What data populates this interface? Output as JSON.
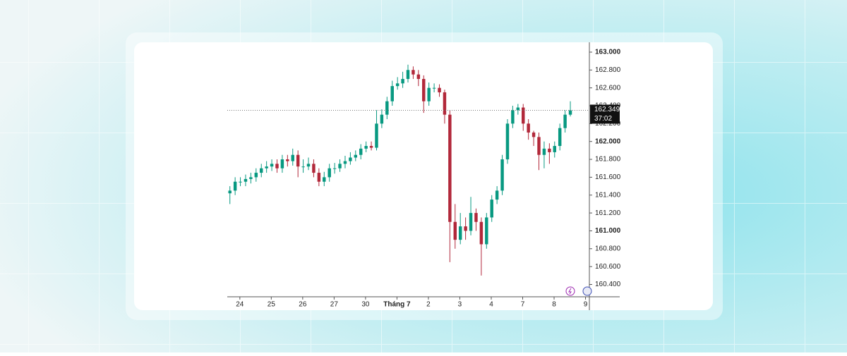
{
  "chart_data": {
    "type": "candlestick",
    "open": [
      161.42,
      161.45,
      161.55,
      161.55,
      161.58,
      161.6,
      161.65,
      161.7,
      161.72,
      161.75,
      161.7,
      161.8,
      161.78,
      161.85,
      161.72,
      161.72,
      161.75,
      161.65,
      161.55,
      161.6,
      161.7,
      161.7,
      161.75,
      161.78,
      161.82,
      161.85,
      161.92,
      161.95,
      161.93,
      162.2,
      162.3,
      162.45,
      162.62,
      162.65,
      162.7,
      162.8,
      162.75,
      162.7,
      162.45,
      162.6,
      162.6,
      162.55,
      162.3,
      161.1,
      160.9,
      161.05,
      161.0,
      161.2,
      161.1,
      160.85,
      161.15,
      161.35,
      161.45,
      161.8,
      162.2,
      162.35,
      162.38,
      162.2,
      162.1,
      162.05,
      161.85,
      161.92,
      161.88,
      161.95,
      162.15,
      162.3
    ],
    "high": [
      161.5,
      161.6,
      161.6,
      161.63,
      161.65,
      161.7,
      161.75,
      161.78,
      161.8,
      161.8,
      161.85,
      161.85,
      161.92,
      161.9,
      161.8,
      161.82,
      161.8,
      161.7,
      161.66,
      161.75,
      161.76,
      161.8,
      161.84,
      161.88,
      161.9,
      161.97,
      162.0,
      162.0,
      162.35,
      162.36,
      162.5,
      162.68,
      162.72,
      162.78,
      162.86,
      162.84,
      162.8,
      162.74,
      162.66,
      162.65,
      162.64,
      162.58,
      162.35,
      161.3,
      161.2,
      161.15,
      161.38,
      161.25,
      161.15,
      161.2,
      161.4,
      161.5,
      161.85,
      162.25,
      162.4,
      162.42,
      162.42,
      162.25,
      162.12,
      162.1,
      162.0,
      161.98,
      162.0,
      162.2,
      162.35,
      162.45
    ],
    "low": [
      161.3,
      161.4,
      161.5,
      161.5,
      161.53,
      161.55,
      161.6,
      161.65,
      161.67,
      161.65,
      161.65,
      161.72,
      161.73,
      161.6,
      161.65,
      161.68,
      161.6,
      161.5,
      161.5,
      161.55,
      161.64,
      161.66,
      161.7,
      161.74,
      161.78,
      161.8,
      161.88,
      161.9,
      161.9,
      162.15,
      162.25,
      162.4,
      162.58,
      162.6,
      162.66,
      162.7,
      162.62,
      162.32,
      162.4,
      162.55,
      162.5,
      162.2,
      160.65,
      160.8,
      160.85,
      160.9,
      160.95,
      161.0,
      160.5,
      160.8,
      161.1,
      161.3,
      161.4,
      161.75,
      162.15,
      162.3,
      162.12,
      162.02,
      161.95,
      161.68,
      161.7,
      161.75,
      161.82,
      161.9,
      162.1,
      162.28
    ],
    "close": [
      161.45,
      161.55,
      161.55,
      161.58,
      161.6,
      161.65,
      161.7,
      161.72,
      161.75,
      161.7,
      161.8,
      161.78,
      161.85,
      161.72,
      161.72,
      161.75,
      161.65,
      161.55,
      161.6,
      161.7,
      161.7,
      161.75,
      161.78,
      161.82,
      161.85,
      161.92,
      161.95,
      161.93,
      162.2,
      162.3,
      162.45,
      162.62,
      162.65,
      162.7,
      162.8,
      162.75,
      162.7,
      162.45,
      162.6,
      162.6,
      162.55,
      162.3,
      161.1,
      160.9,
      161.05,
      161.0,
      161.2,
      161.1,
      160.85,
      161.15,
      161.35,
      161.45,
      161.8,
      162.2,
      162.35,
      162.38,
      162.2,
      162.1,
      162.05,
      161.85,
      161.92,
      161.88,
      161.95,
      162.15,
      162.3,
      162.349
    ],
    "up_color": "#089981",
    "down_color": "#b2283a",
    "xlim": [
      0,
      69
    ],
    "xticks": [
      {
        "value": 2.4,
        "label": "24"
      },
      {
        "value": 8.4,
        "label": "25"
      },
      {
        "value": 14.4,
        "label": "26"
      },
      {
        "value": 20.4,
        "label": "27"
      },
      {
        "value": 26.4,
        "label": "30"
      },
      {
        "value": 32.4,
        "label": "Tháng 7"
      },
      {
        "value": 38.4,
        "label": "2"
      },
      {
        "value": 44.4,
        "label": "3"
      },
      {
        "value": 50.4,
        "label": "4"
      },
      {
        "value": 56.4,
        "label": "7"
      },
      {
        "value": 62.4,
        "label": "8"
      },
      {
        "value": 68.4,
        "label": "9"
      }
    ],
    "ylim": [
      160.27,
      163.11
    ],
    "yticks": [
      {
        "value": 163.0,
        "label": "163.000"
      },
      {
        "value": 162.8,
        "label": "162.800"
      },
      {
        "value": 162.6,
        "label": "162.600"
      },
      {
        "value": 162.4,
        "label": "162.400"
      },
      {
        "value": 162.2,
        "label": "162.200"
      },
      {
        "value": 162.0,
        "label": "162.000"
      },
      {
        "value": 161.8,
        "label": "161.800"
      },
      {
        "value": 161.6,
        "label": "161.600"
      },
      {
        "value": 161.4,
        "label": "161.400"
      },
      {
        "value": 161.2,
        "label": "161.200"
      },
      {
        "value": 161.0,
        "label": "161.000"
      },
      {
        "value": 160.8,
        "label": "160.800"
      },
      {
        "value": 160.6,
        "label": "160.600"
      },
      {
        "value": 160.4,
        "label": "160.400"
      }
    ],
    "last_price_label": "162.349",
    "countdown": "37:02"
  }
}
